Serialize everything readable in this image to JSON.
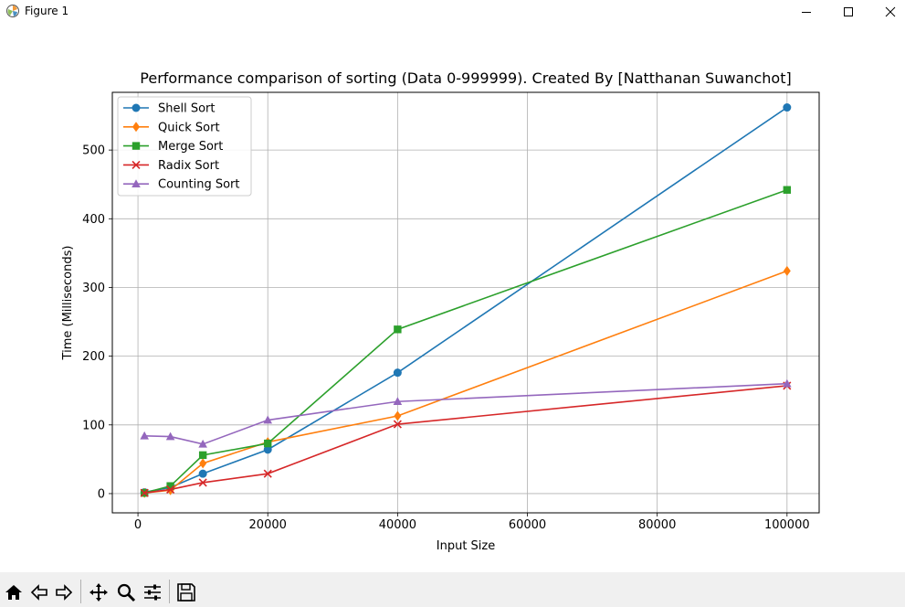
{
  "window": {
    "title": "Figure 1",
    "controls": [
      "minimize-icon",
      "maximize-icon",
      "close-icon"
    ]
  },
  "toolbar": {
    "buttons": [
      "home-icon",
      "back-icon",
      "forward-icon",
      "pan-icon",
      "zoom-icon",
      "configure-subplots-icon",
      "save-icon"
    ]
  },
  "chart_data": {
    "type": "line",
    "title": "Performance comparison of sorting (Data 0-999999). Created By [Natthanan Suwanchot]",
    "xlabel": "Input Size",
    "ylabel": "Time (Milliseconds)",
    "x": [
      1000,
      5000,
      10000,
      20000,
      40000,
      100000
    ],
    "xlim": [
      -3950,
      104950
    ],
    "ylim": [
      -28,
      584
    ],
    "xticks": [
      0,
      20000,
      40000,
      60000,
      80000,
      100000
    ],
    "yticks": [
      0,
      100,
      200,
      300,
      400,
      500
    ],
    "grid": true,
    "legend_position": "upper-left",
    "series": [
      {
        "name": "Shell Sort",
        "color": "#1f77b4",
        "marker": "circle",
        "values": [
          2,
          9,
          29,
          64,
          176,
          562
        ]
      },
      {
        "name": "Quick Sort",
        "color": "#ff7f0e",
        "marker": "diamond",
        "values": [
          1,
          5,
          44,
          75,
          113,
          324
        ]
      },
      {
        "name": "Merge Sort",
        "color": "#2ca02c",
        "marker": "square",
        "values": [
          1,
          11,
          56,
          73,
          239,
          442
        ]
      },
      {
        "name": "Radix Sort",
        "color": "#d62728",
        "marker": "x",
        "values": [
          1,
          6,
          16,
          29,
          101,
          157
        ]
      },
      {
        "name": "Counting Sort",
        "color": "#9467bd",
        "marker": "triangle",
        "values": [
          84,
          83,
          72,
          107,
          134,
          160
        ]
      }
    ]
  }
}
